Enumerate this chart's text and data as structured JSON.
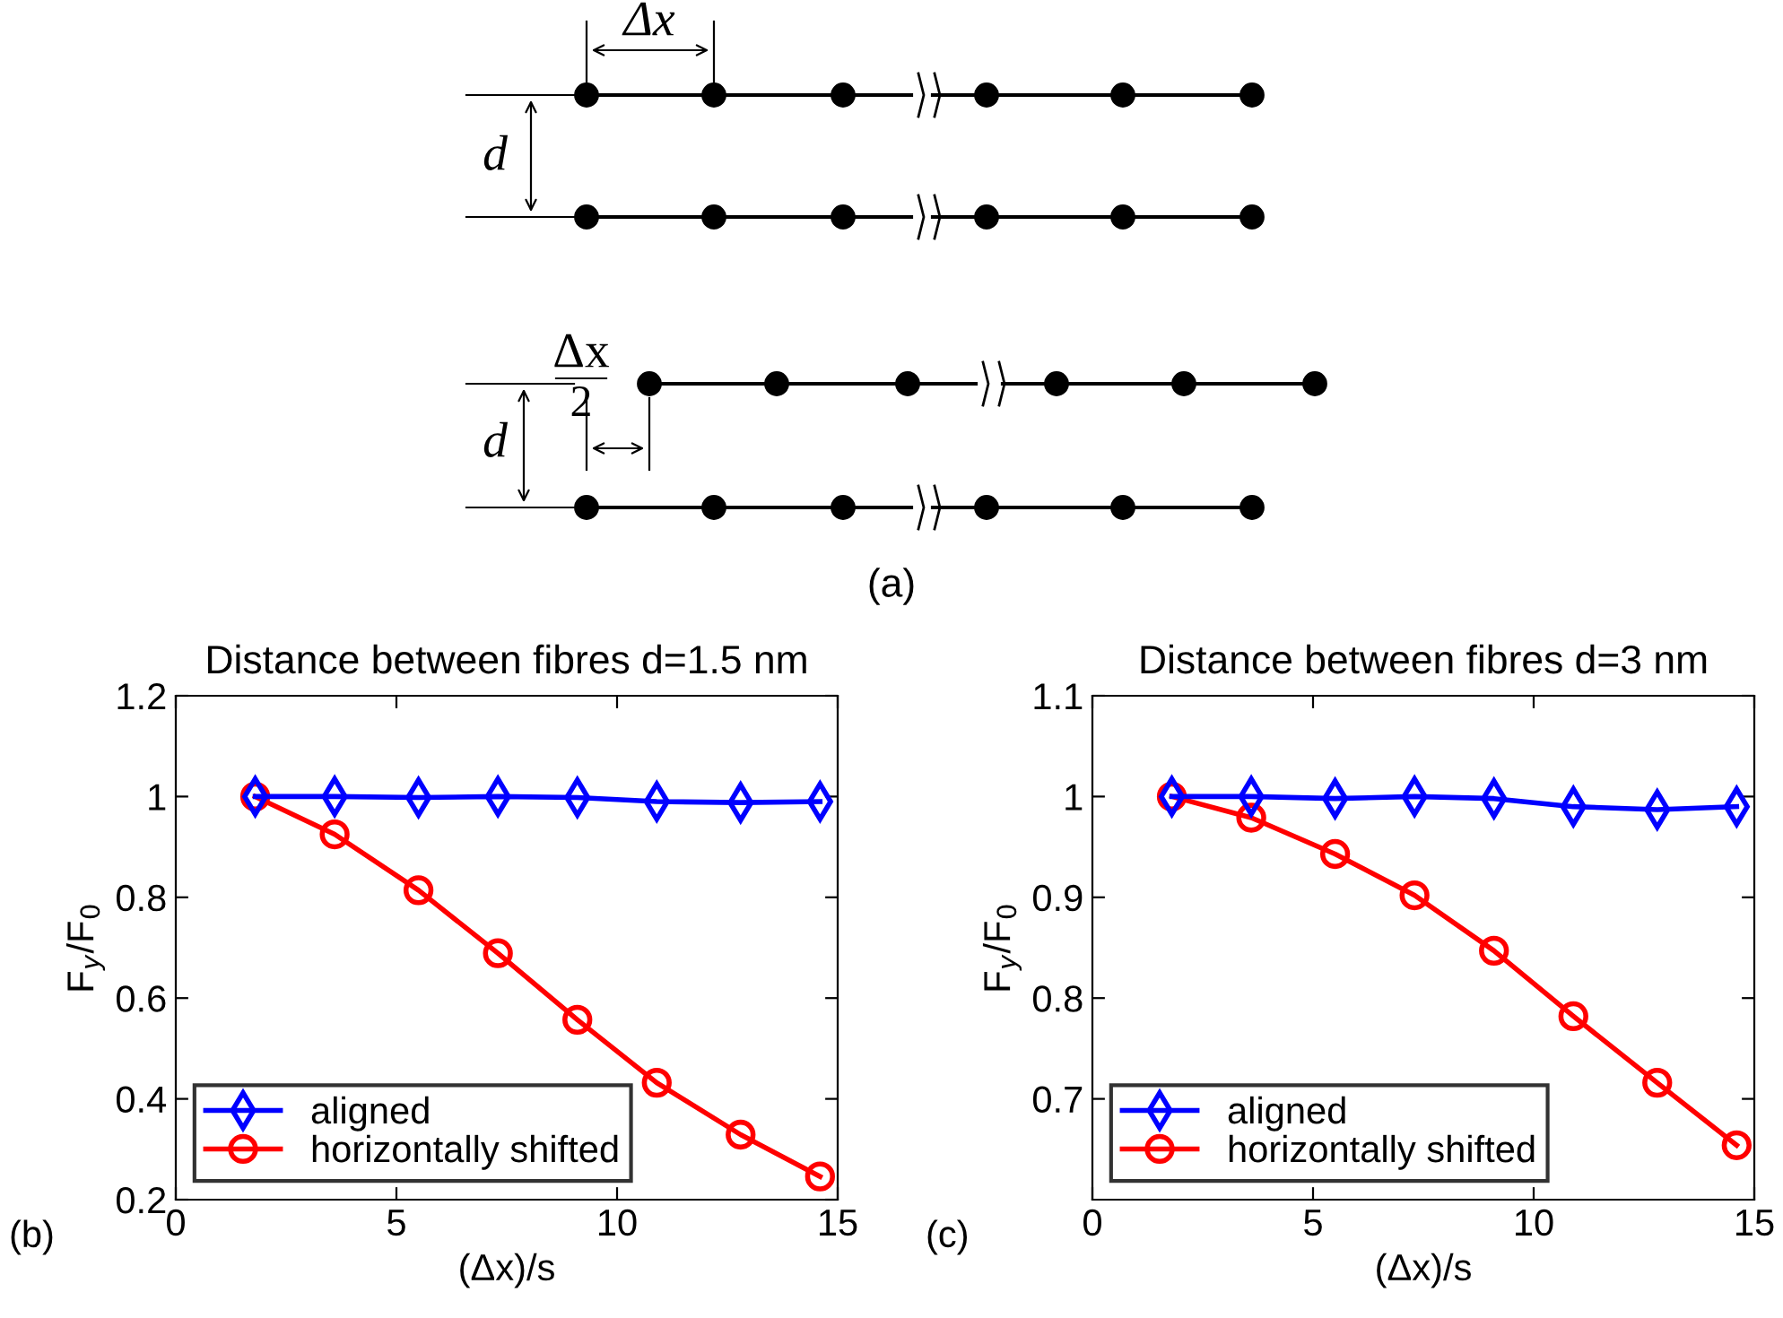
{
  "chart_data": [
    {
      "type": "other",
      "annotations": [
        "Δx",
        "d",
        "Δx",
        "2",
        "d",
        "(a)"
      ]
    },
    {
      "type": "line",
      "title": "Distance between fibres d=1.5 nm",
      "xlabel": "(Δx)/s",
      "ylabel": "F$_{y}$/F$_{0}$",
      "annotations": [
        "(b)"
      ],
      "xlim": [
        0,
        15
      ],
      "xticks": [
        0,
        5,
        10,
        15
      ],
      "ylim": [
        0.2,
        1.2
      ],
      "yticks": [
        0.2,
        0.4,
        0.6,
        0.8,
        1,
        1.2
      ],
      "grid": false,
      "legend": "bottom left",
      "line_style": "solid",
      "series": [
        {
          "name": "aligned",
          "color": "#0000ff",
          "marker": "diamond",
          "x": [
            1.8,
            3.6,
            5.5,
            7.3,
            9.1,
            10.9,
            12.8,
            14.6
          ],
          "values": [
            1,
            1,
            0.998,
            1,
            0.998,
            0.99,
            0.988,
            0.99
          ]
        },
        {
          "name": "horizontally shifted",
          "color": "#ff0000",
          "marker": "circle",
          "x": [
            1.8,
            3.6,
            5.5,
            7.3,
            9.1,
            10.9,
            12.8,
            14.6
          ],
          "values": [
            1,
            0.925,
            0.814,
            0.689,
            0.557,
            0.432,
            0.329,
            0.246
          ]
        }
      ]
    },
    {
      "type": "line",
      "title": "Distance between fibres d=3 nm",
      "xlabel": "(Δx)/s",
      "ylabel": "F$_{y}$/F$_{0}$",
      "annotations": [
        "(c)"
      ],
      "xlim": [
        0,
        15
      ],
      "xticks": [
        0,
        5,
        10,
        15
      ],
      "ylim": [
        0.6,
        1.1
      ],
      "yticks": [
        0.7,
        0.8,
        0.9,
        1,
        1.1
      ],
      "grid": false,
      "legend": "bottom left",
      "line_style": "solid",
      "series": [
        {
          "name": "aligned",
          "color": "#0000ff",
          "marker": "diamond",
          "x": [
            1.8,
            3.6,
            5.5,
            7.3,
            9.1,
            10.9,
            12.8,
            14.6
          ],
          "values": [
            1,
            1,
            0.998,
            1,
            0.998,
            0.99,
            0.987,
            0.99
          ]
        },
        {
          "name": "horizontally shifted",
          "color": "#ff0000",
          "marker": "circle",
          "x": [
            1.8,
            3.6,
            5.5,
            7.3,
            9.1,
            10.9,
            12.8,
            14.6
          ],
          "values": [
            1,
            0.979,
            0.943,
            0.902,
            0.847,
            0.782,
            0.716,
            0.654
          ]
        }
      ]
    }
  ]
}
